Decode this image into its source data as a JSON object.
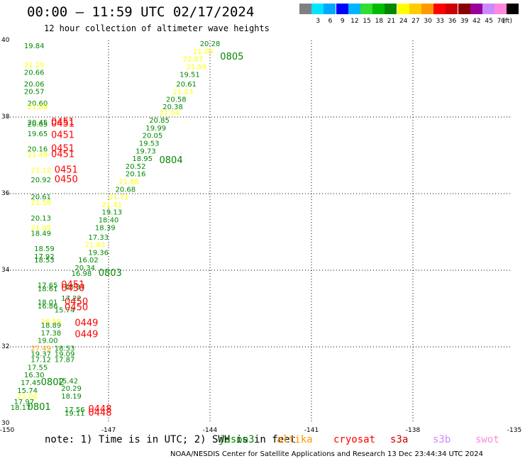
{
  "title": "00:00 – 11:59 UTC 02/17/2024",
  "subtitle": "12 hour collection of altimeter wave heights",
  "colorbar": {
    "unit": "(ft)",
    "labels": [
      "",
      "3",
      "6",
      "9",
      "12",
      "15",
      "18",
      "21",
      "24",
      "27",
      "30",
      "33",
      "36",
      "39",
      "42",
      "45",
      "70"
    ],
    "colors": [
      "#808080",
      "#00e5ff",
      "#00a8ff",
      "#0000ff",
      "#00b4ff",
      "#33dd33",
      "#00bb00",
      "#008800",
      "#ffff00",
      "#ffcc00",
      "#ff9900",
      "#ff0000",
      "#cc0000",
      "#880000",
      "#990099",
      "#cc88ff",
      "#ff88dd",
      "#000000"
    ]
  },
  "axes": {
    "x_ticks": [
      "-150",
      "-147",
      "-144",
      "-141",
      "-138",
      "-135"
    ],
    "y_ticks": [
      "40",
      "38",
      "36",
      "34",
      "32",
      "30"
    ],
    "x_range": [
      -150,
      -135
    ],
    "y_range": [
      30,
      40
    ]
  },
  "note": "note: 1) Time is in UTC; 2) SWH is in feet",
  "satellites": [
    {
      "name": "jason3",
      "color": "#008800"
    },
    {
      "name": "altika",
      "color": "#ff9900"
    },
    {
      "name": "cryosat",
      "color": "#ff0000"
    },
    {
      "name": "s3a",
      "color": "#cc0000"
    },
    {
      "name": "s3b",
      "color": "#cc88ff"
    },
    {
      "name": "swot",
      "color": "#ff88dd"
    }
  ],
  "footer": "NOAA/NESDIS Center for Satellite Applications and Research   13 Dec 23:44:34 UTC 2024",
  "observations": [
    {
      "lon": -149.5,
      "lat": 39.8,
      "v": "19.84",
      "c": "#008800"
    },
    {
      "lon": -149.5,
      "lat": 39.3,
      "v": "21.29",
      "c": "#ffff00"
    },
    {
      "lon": -149.5,
      "lat": 39.1,
      "v": "20.66",
      "c": "#008800"
    },
    {
      "lon": -149.5,
      "lat": 38.8,
      "v": "20.06",
      "c": "#008800"
    },
    {
      "lon": -149.5,
      "lat": 38.6,
      "v": "20.57",
      "c": "#008800"
    },
    {
      "lon": -149.4,
      "lat": 38.3,
      "v": "20.60",
      "c": "#008800"
    },
    {
      "lon": -149.4,
      "lat": 38.2,
      "v": "21.89",
      "c": "#ffff00"
    },
    {
      "lon": -149.4,
      "lat": 37.8,
      "v": "20.45",
      "c": "#008800"
    },
    {
      "lon": -149.4,
      "lat": 37.75,
      "v": "20.65",
      "c": "#008800"
    },
    {
      "lon": -149.4,
      "lat": 37.5,
      "v": "19.65",
      "c": "#008800"
    },
    {
      "lon": -149.4,
      "lat": 37.1,
      "v": "20.16",
      "c": "#008800"
    },
    {
      "lon": -149.4,
      "lat": 36.95,
      "v": "21.49",
      "c": "#ffff00"
    },
    {
      "lon": -149.3,
      "lat": 36.55,
      "v": "21.12",
      "c": "#ffff00"
    },
    {
      "lon": -149.3,
      "lat": 36.3,
      "v": "20.92",
      "c": "#008800"
    },
    {
      "lon": -149.3,
      "lat": 35.85,
      "v": "20.61",
      "c": "#008800"
    },
    {
      "lon": -149.3,
      "lat": 35.7,
      "v": "21.58",
      "c": "#ffff00"
    },
    {
      "lon": -149.3,
      "lat": 35.3,
      "v": "20.13",
      "c": "#008800"
    },
    {
      "lon": -149.3,
      "lat": 35.05,
      "v": "21.05",
      "c": "#ffff00"
    },
    {
      "lon": -149.3,
      "lat": 34.9,
      "v": "18.49",
      "c": "#008800"
    },
    {
      "lon": -149.2,
      "lat": 34.5,
      "v": "18.59",
      "c": "#008800"
    },
    {
      "lon": -149.2,
      "lat": 34.3,
      "v": "17.92",
      "c": "#008800"
    },
    {
      "lon": -149.2,
      "lat": 34.2,
      "v": "18.53",
      "c": "#008800"
    },
    {
      "lon": -149.1,
      "lat": 33.55,
      "v": "17.65",
      "c": "#008800"
    },
    {
      "lon": -149.1,
      "lat": 33.45,
      "v": "18.61",
      "c": "#008800"
    },
    {
      "lon": -149.1,
      "lat": 33.1,
      "v": "18.01",
      "c": "#008800"
    },
    {
      "lon": -149.1,
      "lat": 33.0,
      "v": "16.86",
      "c": "#008800"
    },
    {
      "lon": -149.0,
      "lat": 32.6,
      "v": "18.59",
      "c": "#ffff00"
    },
    {
      "lon": -149.0,
      "lat": 32.5,
      "v": "18.89",
      "c": "#008800"
    },
    {
      "lon": -149.0,
      "lat": 32.3,
      "v": "17.38",
      "c": "#008800"
    },
    {
      "lon": -149.1,
      "lat": 32.1,
      "v": "19.00",
      "c": "#008800"
    },
    {
      "lon": -149.3,
      "lat": 31.9,
      "v": "27.49",
      "c": "#ff9900"
    },
    {
      "lon": -149.3,
      "lat": 31.75,
      "v": "19.37",
      "c": "#008800"
    },
    {
      "lon": -149.3,
      "lat": 31.6,
      "v": "17.12",
      "c": "#008800"
    },
    {
      "lon": -149.4,
      "lat": 31.4,
      "v": "17.55",
      "c": "#008800"
    },
    {
      "lon": -149.5,
      "lat": 31.2,
      "v": "16.30",
      "c": "#008800"
    },
    {
      "lon": -149.6,
      "lat": 31.0,
      "v": "17.45",
      "c": "#008800"
    },
    {
      "lon": -149.7,
      "lat": 30.8,
      "v": "15.74",
      "c": "#008800"
    },
    {
      "lon": -149.7,
      "lat": 30.65,
      "v": "21.06",
      "c": "#ffff00"
    },
    {
      "lon": -149.8,
      "lat": 30.5,
      "v": "17.97",
      "c": "#008800"
    },
    {
      "lon": -149.9,
      "lat": 30.35,
      "v": "18.17",
      "c": "#008800"
    },
    {
      "lon": -148.6,
      "lat": 31.9,
      "v": "18.53",
      "c": "#008800"
    },
    {
      "lon": -148.6,
      "lat": 31.75,
      "v": "19.09",
      "c": "#008800"
    },
    {
      "lon": -148.6,
      "lat": 31.6,
      "v": "17.87",
      "c": "#008800"
    },
    {
      "lon": -148.5,
      "lat": 31.05,
      "v": "15.42",
      "c": "#008800"
    },
    {
      "lon": -148.4,
      "lat": 30.85,
      "v": "20.29",
      "c": "#008800"
    },
    {
      "lon": -148.4,
      "lat": 30.65,
      "v": "18.19",
      "c": "#008800"
    },
    {
      "lon": -148.3,
      "lat": 30.3,
      "v": "17.56",
      "c": "#008800"
    },
    {
      "lon": -148.3,
      "lat": 30.2,
      "v": "19.11",
      "c": "#008800"
    },
    {
      "lon": -148.3,
      "lat": 33.5,
      "v": "18.37",
      "c": "#008800"
    },
    {
      "lon": -148.4,
      "lat": 33.2,
      "v": "17.22",
      "c": "#008800"
    },
    {
      "lon": -148.6,
      "lat": 32.9,
      "v": "15.74",
      "c": "#008800"
    },
    {
      "lon": -148.1,
      "lat": 33.85,
      "v": "16.98",
      "c": "#008800"
    },
    {
      "lon": -148.0,
      "lat": 34.0,
      "v": "20.34",
      "c": "#008800"
    },
    {
      "lon": -147.9,
      "lat": 34.2,
      "v": "16.02",
      "c": "#008800"
    },
    {
      "lon": -147.6,
      "lat": 34.4,
      "v": "19.36",
      "c": "#008800"
    },
    {
      "lon": -147.7,
      "lat": 34.6,
      "v": "21.83",
      "c": "#ffff00"
    },
    {
      "lon": -147.6,
      "lat": 34.8,
      "v": "17.33",
      "c": "#008800"
    },
    {
      "lon": -147.4,
      "lat": 35.05,
      "v": "18.39",
      "c": "#008800"
    },
    {
      "lon": -147.3,
      "lat": 35.25,
      "v": "18.40",
      "c": "#008800"
    },
    {
      "lon": -147.2,
      "lat": 35.45,
      "v": "19.13",
      "c": "#008800"
    },
    {
      "lon": -147.2,
      "lat": 35.65,
      "v": "21.41",
      "c": "#ffff00"
    },
    {
      "lon": -147.0,
      "lat": 35.85,
      "v": "21.71",
      "c": "#ffff00"
    },
    {
      "lon": -146.8,
      "lat": 36.05,
      "v": "20.68",
      "c": "#008800"
    },
    {
      "lon": -146.7,
      "lat": 36.25,
      "v": "21.88",
      "c": "#ffff00"
    },
    {
      "lon": -146.5,
      "lat": 36.45,
      "v": "20.16",
      "c": "#008800"
    },
    {
      "lon": -146.5,
      "lat": 36.65,
      "v": "20.52",
      "c": "#008800"
    },
    {
      "lon": -146.3,
      "lat": 36.85,
      "v": "18.95",
      "c": "#008800"
    },
    {
      "lon": -146.2,
      "lat": 37.05,
      "v": "19.73",
      "c": "#008800"
    },
    {
      "lon": -146.1,
      "lat": 37.25,
      "v": "19.53",
      "c": "#008800"
    },
    {
      "lon": -146.0,
      "lat": 37.45,
      "v": "20.05",
      "c": "#008800"
    },
    {
      "lon": -145.9,
      "lat": 37.65,
      "v": "19.99",
      "c": "#008800"
    },
    {
      "lon": -145.8,
      "lat": 37.85,
      "v": "20.85",
      "c": "#008800"
    },
    {
      "lon": -145.5,
      "lat": 38.05,
      "v": "21.04",
      "c": "#ffff00"
    },
    {
      "lon": -145.4,
      "lat": 38.2,
      "v": "20.38",
      "c": "#008800"
    },
    {
      "lon": -145.3,
      "lat": 38.4,
      "v": "20.58",
      "c": "#008800"
    },
    {
      "lon": -145.1,
      "lat": 38.6,
      "v": "21.23",
      "c": "#ffff00"
    },
    {
      "lon": -145.0,
      "lat": 38.8,
      "v": "20.61",
      "c": "#008800"
    },
    {
      "lon": -144.9,
      "lat": 39.05,
      "v": "19.51",
      "c": "#008800"
    },
    {
      "lon": -144.7,
      "lat": 39.25,
      "v": "21.59",
      "c": "#ffff00"
    },
    {
      "lon": -144.8,
      "lat": 39.45,
      "v": "22.87",
      "c": "#ffff00"
    },
    {
      "lon": -144.5,
      "lat": 39.65,
      "v": "21.09",
      "c": "#ffff00"
    },
    {
      "lon": -144.3,
      "lat": 39.85,
      "v": "20.28",
      "c": "#008800"
    },
    {
      "lon": -144.2,
      "lat": 40.05,
      "v": "21.94",
      "c": "#ffff00"
    },
    {
      "lon": -144.0,
      "lat": 40.25,
      "v": "21.42",
      "c": "#ffff00"
    }
  ],
  "pass_times": [
    {
      "lon": -148.7,
      "lat": 37.8,
      "t": "0451",
      "c": "#ff0000"
    },
    {
      "lon": -148.7,
      "lat": 37.75,
      "t": "0451",
      "c": "#ff0000"
    },
    {
      "lon": -148.7,
      "lat": 37.45,
      "t": "0451",
      "c": "#ff0000"
    },
    {
      "lon": -148.7,
      "lat": 37.1,
      "t": "0451",
      "c": "#ff0000"
    },
    {
      "lon": -148.7,
      "lat": 36.95,
      "t": "0451",
      "c": "#ff0000"
    },
    {
      "lon": -148.6,
      "lat": 36.55,
      "t": "0451",
      "c": "#ff0000"
    },
    {
      "lon": -148.6,
      "lat": 36.3,
      "t": "0450",
      "c": "#ff0000"
    },
    {
      "lon": -148.4,
      "lat": 33.55,
      "t": "0451",
      "c": "#ff0000"
    },
    {
      "lon": -148.4,
      "lat": 33.45,
      "t": "0450",
      "c": "#ff0000"
    },
    {
      "lon": -148.3,
      "lat": 33.1,
      "t": "0450",
      "c": "#ff0000"
    },
    {
      "lon": -148.3,
      "lat": 32.95,
      "t": "0450",
      "c": "#ff0000"
    },
    {
      "lon": -148.0,
      "lat": 32.55,
      "t": "0449",
      "c": "#ff0000"
    },
    {
      "lon": -148.0,
      "lat": 32.25,
      "t": "0449",
      "c": "#ff0000"
    },
    {
      "lon": -147.6,
      "lat": 30.3,
      "t": "0448",
      "c": "#ff0000"
    },
    {
      "lon": -147.6,
      "lat": 30.2,
      "t": "0448",
      "c": "#ff0000"
    },
    {
      "lon": -143.7,
      "lat": 39.5,
      "t": "0805",
      "c": "#008800"
    },
    {
      "lon": -145.5,
      "lat": 36.8,
      "t": "0804",
      "c": "#008800"
    },
    {
      "lon": -147.3,
      "lat": 33.85,
      "t": "0803",
      "c": "#008800"
    },
    {
      "lon": -149.0,
      "lat": 31.0,
      "t": "0802",
      "c": "#008800"
    },
    {
      "lon": -149.4,
      "lat": 30.35,
      "t": "0801",
      "c": "#008800"
    }
  ]
}
